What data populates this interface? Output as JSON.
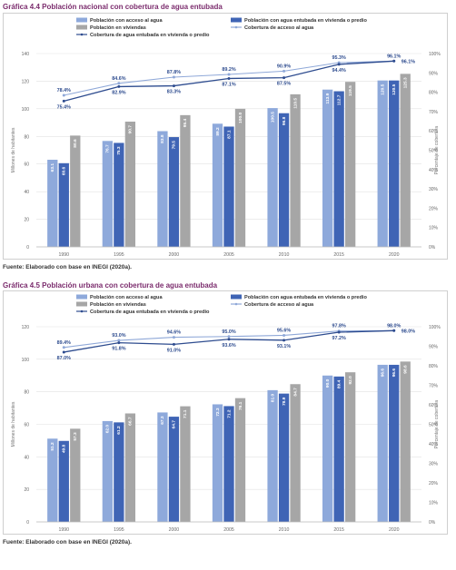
{
  "colors": {
    "access": "#8ea9db",
    "piped": "#3f64b5",
    "homes": "#a6a6a6",
    "line_access": "#8fa8d8",
    "line_piped": "#2e4c8f",
    "title": "#7b2c6d"
  },
  "chart_data": [
    {
      "type": "bar",
      "title": "Gráfica 4.4 Población nacional con cobertura de agua entubada",
      "source": "Fuente: Elaborado con base en INEGI (2020a).",
      "ylabel": "Millones de habitantes",
      "y2label": "Porcentaje de cobertura",
      "ylim": [
        0,
        140
      ],
      "yticks": [
        0,
        20,
        40,
        60,
        80,
        100,
        120,
        140
      ],
      "y2lim": [
        0,
        100
      ],
      "y2ticks": [
        "0%",
        "10%",
        "20%",
        "30%",
        "40%",
        "50%",
        "60%",
        "70%",
        "80%",
        "90%",
        "100%"
      ],
      "categories": [
        "1990",
        "1995",
        "2000",
        "2005",
        "2010",
        "2015",
        "2020"
      ],
      "legend": [
        "Población con acceso al agua",
        "Población con agua entubada en vivienda o predio",
        "Población en viviendas",
        "Cobertura de acceso al agua",
        "Cobertura de agua entubada en vivienda o predio"
      ],
      "series": [
        {
          "name": "Población con acceso al agua",
          "values": [
            63.1,
            76.7,
            83.8,
            89.2,
            100.5,
            113.9,
            120.5
          ],
          "labels": [
            "63.1",
            "76.7",
            "83.8",
            "89.2",
            "100.5",
            "113.9",
            "120.5"
          ]
        },
        {
          "name": "Población con agua entubada en vivienda o predio",
          "values": [
            60.6,
            75.3,
            79.5,
            87.1,
            96.8,
            112.7,
            120.5
          ],
          "labels": [
            "60.6",
            "75.3",
            "79.5",
            "87.1",
            "96.8",
            "112.7",
            "120.5"
          ]
        },
        {
          "name": "Población en viviendas",
          "values": [
            80.6,
            90.7,
            95.4,
            100.0,
            110.5,
            119.5,
            125.3
          ],
          "labels": [
            "80.6",
            "90.7",
            "95.4",
            "100.0",
            "110.5",
            "119.5",
            "125.3"
          ]
        }
      ],
      "lines": [
        {
          "name": "Cobertura de acceso al agua",
          "values": [
            78.4,
            84.6,
            87.8,
            89.2,
            90.9,
            95.3,
            96.1
          ],
          "labels": [
            "78.4%",
            "84.6%",
            "87.8%",
            "89.2%",
            "90.9%",
            "95.3%",
            "96.1%"
          ]
        },
        {
          "name": "Cobertura de agua entubada en vivienda o predio",
          "values": [
            75.4,
            82.9,
            83.3,
            87.1,
            87.5,
            94.4,
            96.1
          ],
          "labels": [
            "75.4%",
            "82.9%",
            "83.3%",
            "87.1%",
            "87.5%",
            "94.4%",
            "96.1%"
          ]
        }
      ]
    },
    {
      "type": "bar",
      "title": "Gráfica 4.5 Población urbana con cobertura de agua entubada",
      "source": "Fuente: Elaborado con base en INEGI (2020a).",
      "ylabel": "Millones de habitantes",
      "y2label": "Porcentaje de cobertura",
      "ylim": [
        0,
        120
      ],
      "yticks": [
        0,
        20,
        40,
        60,
        80,
        100,
        120
      ],
      "y2lim": [
        0,
        100
      ],
      "y2ticks": [
        "0%",
        "10%",
        "20%",
        "30%",
        "40%",
        "50%",
        "60%",
        "70%",
        "80%",
        "90%",
        "100%"
      ],
      "categories": [
        "1990",
        "1995",
        "2000",
        "2005",
        "2010",
        "2015",
        "2020"
      ],
      "legend": [
        "Población con acceso al agua",
        "Población con agua entubada en vivienda o predio",
        "Población en viviendas",
        "Cobertura de acceso al agua",
        "Cobertura de agua entubada en vivienda o predio"
      ],
      "series": [
        {
          "name": "Población con acceso al agua",
          "values": [
            51.2,
            62.0,
            67.3,
            72.3,
            81.0,
            90.0,
            96.6
          ],
          "labels": [
            "51.2",
            "62.0",
            "67.3",
            "72.3",
            "81.0",
            "90.0",
            "96.6"
          ]
        },
        {
          "name": "Población con agua entubada en vivienda o predio",
          "values": [
            49.8,
            61.2,
            64.7,
            71.2,
            78.9,
            89.4,
            96.6
          ],
          "labels": [
            "49.8",
            "61.2",
            "64.7",
            "71.2",
            "78.9",
            "89.4",
            "96.6"
          ]
        },
        {
          "name": "Población en viviendas",
          "values": [
            57.3,
            66.7,
            71.1,
            76.1,
            84.7,
            92.0,
            98.6
          ],
          "labels": [
            "57.3",
            "66.7",
            "71.1",
            "76.1",
            "84.7",
            "92.0",
            "98.6"
          ]
        }
      ],
      "lines": [
        {
          "name": "Cobertura de acceso al agua",
          "values": [
            89.4,
            93.0,
            94.6,
            95.0,
            95.6,
            97.8,
            98.0
          ],
          "labels": [
            "89.4%",
            "93.0%",
            "94.6%",
            "95.0%",
            "95.6%",
            "97.8%",
            "98.0%"
          ]
        },
        {
          "name": "Cobertura de agua entubada en vivienda o predio",
          "values": [
            87.0,
            91.8,
            91.0,
            93.6,
            93.1,
            97.2,
            98.0
          ],
          "labels": [
            "87.0%",
            "91.8%",
            "91.0%",
            "93.6%",
            "93.1%",
            "97.2%",
            "98.0%"
          ]
        }
      ]
    }
  ]
}
